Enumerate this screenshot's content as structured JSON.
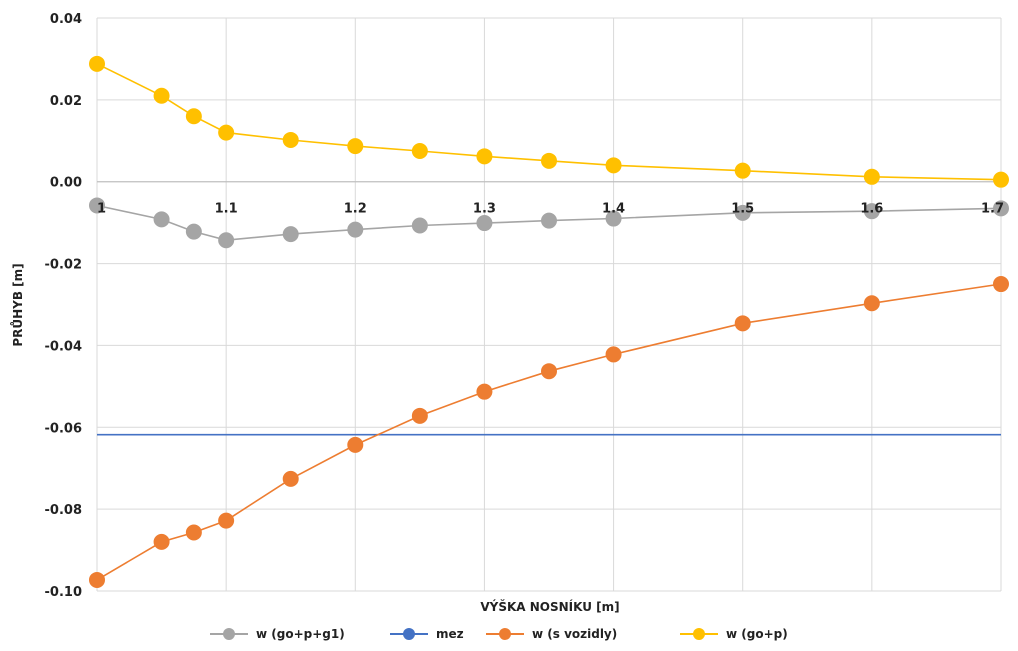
{
  "chart_data": {
    "type": "line",
    "title": "",
    "xlabel": "VÝŠKA NOSNÍKU [m]",
    "ylabel": "PRŮHYB [m]",
    "xlim": [
      1.0,
      1.7
    ],
    "ylim": [
      -0.1,
      0.04
    ],
    "x_ticks": [
      "1",
      "1.1",
      "1.2",
      "1.3",
      "1.4",
      "1.5",
      "1.6",
      "1.7"
    ],
    "y_ticks": [
      "0.04",
      "0.02",
      "0.00",
      "-0.02",
      "-0.04",
      "-0.06",
      "-0.08",
      "-0.10"
    ],
    "grid": true,
    "legend_position": "bottom",
    "series": [
      {
        "name": "w (go+p+g1)",
        "color": "#a5a5a5",
        "markers": true,
        "x": [
          1.0,
          1.05,
          1.075,
          1.1,
          1.15,
          1.2,
          1.25,
          1.3,
          1.35,
          1.4,
          1.5,
          1.6,
          1.7
        ],
        "y": [
          -0.0058,
          -0.0092,
          -0.0122,
          -0.0143,
          -0.0128,
          -0.0117,
          -0.0107,
          -0.0101,
          -0.0095,
          -0.009,
          -0.0076,
          -0.0072,
          -0.0065
        ]
      },
      {
        "name": "mez",
        "color": "#4472c4",
        "markers": false,
        "x": [
          1.0,
          1.7
        ],
        "y": [
          -0.0618,
          -0.0618
        ]
      },
      {
        "name": "w (s vozidly)",
        "color": "#ed7d31",
        "markers": true,
        "x": [
          1.0,
          1.05,
          1.075,
          1.1,
          1.15,
          1.2,
          1.25,
          1.3,
          1.35,
          1.4,
          1.5,
          1.6,
          1.7
        ],
        "y": [
          -0.0973,
          -0.088,
          -0.0857,
          -0.0828,
          -0.0726,
          -0.0643,
          -0.0572,
          -0.0513,
          -0.0463,
          -0.0422,
          -0.0346,
          -0.0297,
          -0.025
        ]
      },
      {
        "name": "w (go+p)",
        "color": "#ffc000",
        "markers": true,
        "x": [
          1.0,
          1.05,
          1.075,
          1.1,
          1.15,
          1.2,
          1.25,
          1.3,
          1.35,
          1.4,
          1.5,
          1.6,
          1.7
        ],
        "y": [
          0.0288,
          0.021,
          0.016,
          0.012,
          0.0102,
          0.0087,
          0.0075,
          0.0062,
          0.0051,
          0.004,
          0.0027,
          0.0012,
          0.0005
        ]
      }
    ]
  }
}
